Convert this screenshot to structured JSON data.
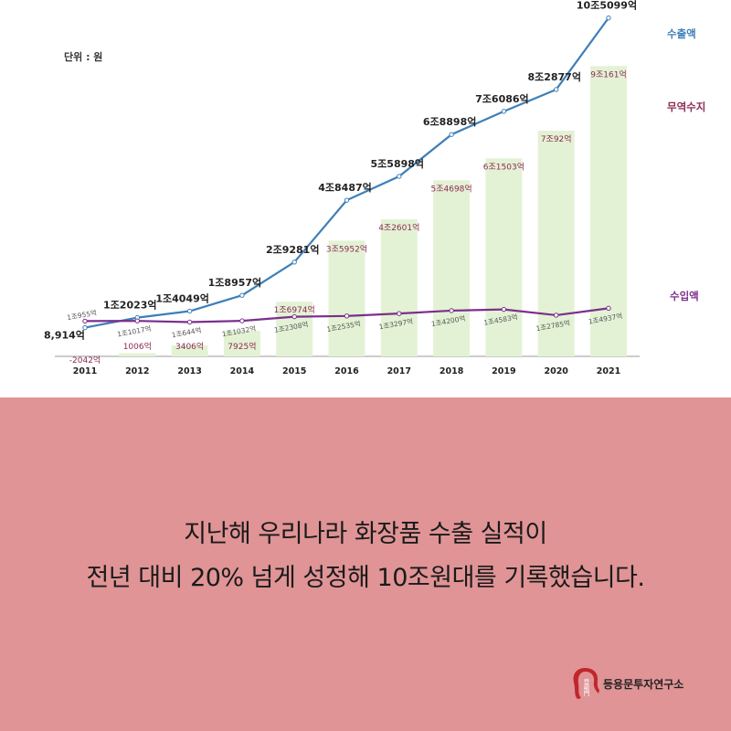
{
  "chart_data": {
    "type": "bar+line",
    "unit_label": "단위 : 원",
    "categories": [
      "2011",
      "2012",
      "2013",
      "2014",
      "2015",
      "2016",
      "2017",
      "2018",
      "2019",
      "2020",
      "2021"
    ],
    "series": [
      {
        "name": "수출액",
        "kind": "line",
        "color": "#3d7fb8",
        "values": [
          8914,
          12023,
          14049,
          18957,
          29281,
          48487,
          55898,
          68898,
          76086,
          82877,
          105099
        ],
        "labels": [
          "8,914억",
          "1조2023억",
          "1조4049억",
          "1조8957억",
          "2조9281억",
          "4조8487억",
          "5조5898억",
          "6조8898억",
          "7조6086억",
          "8조2877억",
          "10조5099억"
        ]
      },
      {
        "name": "무역수지",
        "kind": "bar",
        "color": "#e3f2d4",
        "label_color": "#8e2a54",
        "values": [
          -2042,
          1006,
          3406,
          7925,
          16974,
          35952,
          42601,
          54698,
          61503,
          70092,
          90161
        ],
        "labels": [
          "-2042억",
          "1006억",
          "3406억",
          "7925억",
          "1조6974억",
          "3조5952억",
          "4조2601억",
          "5조4698억",
          "6조1503억",
          "7조92억",
          "9조161억"
        ]
      },
      {
        "name": "수입액",
        "kind": "line",
        "color": "#7b2f8e",
        "values": [
          10955,
          11017,
          10644,
          11032,
          12308,
          12535,
          13297,
          14200,
          14583,
          12785,
          14937
        ],
        "labels": [
          "1조955억",
          "1조1017억",
          "1조644억",
          "1조1032억",
          "1조2308억",
          "1조2535억",
          "1조3297억",
          "1조4200억",
          "1조4583억",
          "1조2785억",
          "1조4937억"
        ]
      }
    ],
    "ylim": [
      -3000,
      107000
    ]
  },
  "caption": {
    "line1": "지난해 우리나라 화장품 수출 실적이",
    "line2": "전년 대비 20% 넘게 성정해 10조원대를 기록했습니다."
  },
  "brand": {
    "name": "등용문투자연구소",
    "logo_text": "登龍門",
    "logo_color": "#c0262c"
  }
}
